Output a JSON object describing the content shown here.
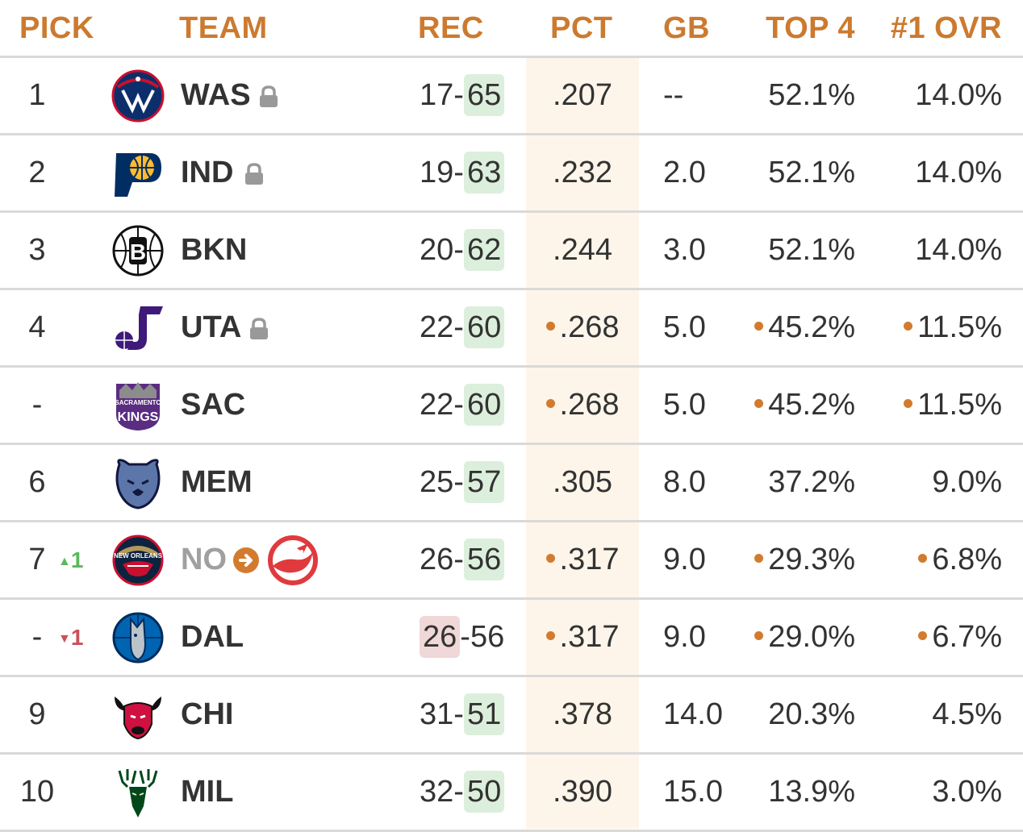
{
  "headers": {
    "pick": "PICK",
    "team": "TEAM",
    "rec": "REC",
    "pct": "PCT",
    "gb": "GB",
    "top4": "TOP 4",
    "ovr": "#1 OVR"
  },
  "colors": {
    "header_text": "#cc7a2f",
    "pct_band": "#fdf5ea",
    "loss_highlight": "#dcefdc",
    "win_highlight": "#f0d8d8",
    "tie_dot": "#d27b2f",
    "move_up": "#5cb85c",
    "move_down": "#c9505a"
  },
  "rows": [
    {
      "pick": "1",
      "team": "WAS",
      "wins": "17",
      "losses": "65",
      "pct": ".207",
      "gb": "--",
      "top4": "52.1%",
      "ovr": "14.0%",
      "logo": "wizards-logo",
      "locked": true
    },
    {
      "pick": "2",
      "team": "IND",
      "wins": "19",
      "losses": "63",
      "pct": ".232",
      "gb": "2.0",
      "top4": "52.1%",
      "ovr": "14.0%",
      "logo": "pacers-logo",
      "locked": true
    },
    {
      "pick": "3",
      "team": "BKN",
      "wins": "20",
      "losses": "62",
      "pct": ".244",
      "gb": "3.0",
      "top4": "52.1%",
      "ovr": "14.0%",
      "logo": "nets-logo"
    },
    {
      "pick": "4",
      "team": "UTA",
      "wins": "22",
      "losses": "60",
      "pct": ".268",
      "gb": "5.0",
      "top4": "45.2%",
      "ovr": "11.5%",
      "logo": "jazz-logo",
      "locked": true,
      "tie": true
    },
    {
      "pick": "-",
      "team": "SAC",
      "wins": "22",
      "losses": "60",
      "pct": ".268",
      "gb": "5.0",
      "top4": "45.2%",
      "ovr": "11.5%",
      "logo": "kings-logo",
      "tie": true
    },
    {
      "pick": "6",
      "team": "MEM",
      "wins": "25",
      "losses": "57",
      "pct": ".305",
      "gb": "8.0",
      "top4": "37.2%",
      "ovr": "9.0%",
      "logo": "grizzlies-logo"
    },
    {
      "pick": "7",
      "team": "NO",
      "wins": "26",
      "losses": "56",
      "pct": ".317",
      "gb": "9.0",
      "top4": "29.3%",
      "ovr": "6.8%",
      "logo": "pelicans-logo",
      "tie": true,
      "move": "1",
      "move_dir": "up",
      "traded_to": "hawks-logo"
    },
    {
      "pick": "-",
      "team": "DAL",
      "wins": "26",
      "losses": "56",
      "pct": ".317",
      "gb": "9.0",
      "top4": "29.0%",
      "ovr": "6.7%",
      "logo": "mavericks-logo",
      "tie": true,
      "move": "1",
      "move_dir": "down",
      "win_highlight": true
    },
    {
      "pick": "9",
      "team": "CHI",
      "wins": "31",
      "losses": "51",
      "pct": ".378",
      "gb": "14.0",
      "top4": "20.3%",
      "ovr": "4.5%",
      "logo": "bulls-logo"
    },
    {
      "pick": "10",
      "team": "MIL",
      "wins": "32",
      "losses": "50",
      "pct": ".390",
      "gb": "15.0",
      "top4": "13.9%",
      "ovr": "3.0%",
      "logo": "bucks-logo"
    }
  ]
}
